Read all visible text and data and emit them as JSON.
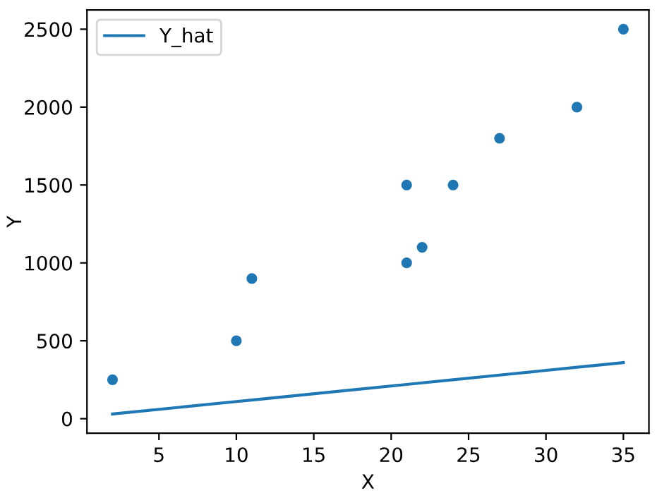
{
  "chart_data": {
    "type": "scatter",
    "xlabel": "X",
    "ylabel": "Y",
    "series": [
      {
        "color": "#1f77b4",
        "marker": "circle",
        "x": [
          2,
          10,
          11,
          21,
          21,
          22,
          24,
          27,
          32,
          35
        ],
        "values": [
          250,
          500,
          900,
          1000,
          1500,
          1100,
          1500,
          1800,
          2000,
          2500
        ]
      },
      {
        "type": "line",
        "name": "Y_hat",
        "color": "#1f77b4",
        "x": [
          2,
          10,
          11,
          21,
          21,
          22,
          24,
          27,
          32,
          35
        ],
        "values": [
          30,
          110,
          120,
          220,
          220,
          230,
          250,
          280,
          330,
          360
        ]
      }
    ],
    "xlim": [
      0.35,
      36.65
    ],
    "xticks": [
      5,
      10,
      15,
      20,
      25,
      30,
      35
    ],
    "ylim": [
      -93.5,
      2623.5
    ],
    "yticks": [
      0,
      500,
      1000,
      1500,
      2000,
      2500
    ],
    "legend": "top left",
    "grid": false
  }
}
